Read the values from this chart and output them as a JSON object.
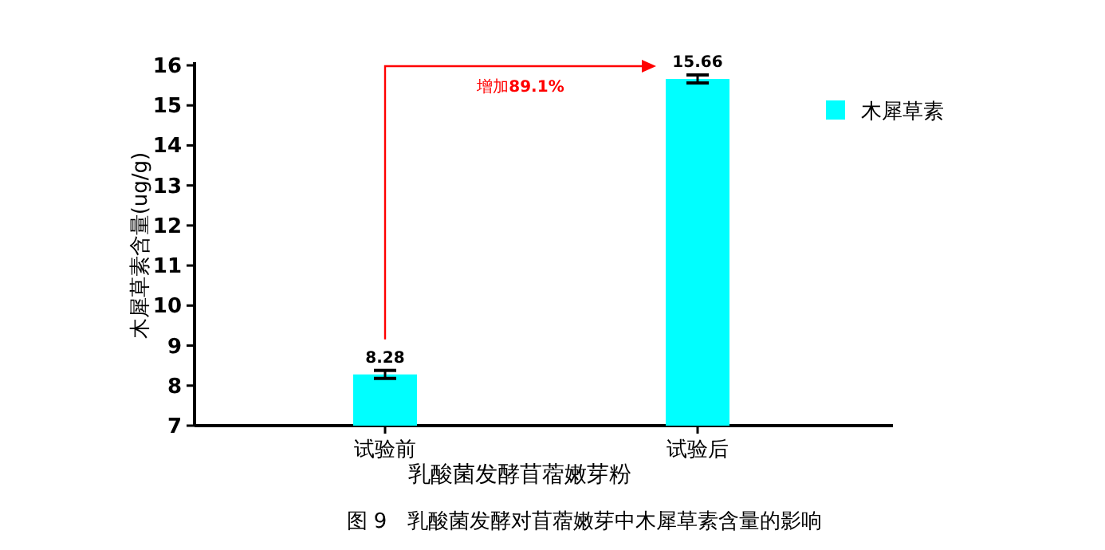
{
  "chart_data": {
    "type": "bar",
    "xlabel": "乳酸菌发酵苜蓿嫩芽粉",
    "ylabel": "木犀草素含量(ug/g)",
    "categories": [
      "试验前",
      "试验后"
    ],
    "series": [
      {
        "name": "木犀草素",
        "color": "#00ffff",
        "values": [
          8.28,
          15.66
        ],
        "errors": [
          0.1,
          0.1
        ]
      }
    ],
    "ylim": [
      7,
      16
    ],
    "yticks": [
      7,
      8,
      9,
      10,
      11,
      12,
      13,
      14,
      15,
      16
    ],
    "data_labels": true,
    "legend": "top right",
    "grid": false,
    "annotations": [
      "增加**89.1%**",
      "图 9　乳酸菌发酵对苜蓿嫩芽中木犀草素含量的影响"
    ]
  }
}
